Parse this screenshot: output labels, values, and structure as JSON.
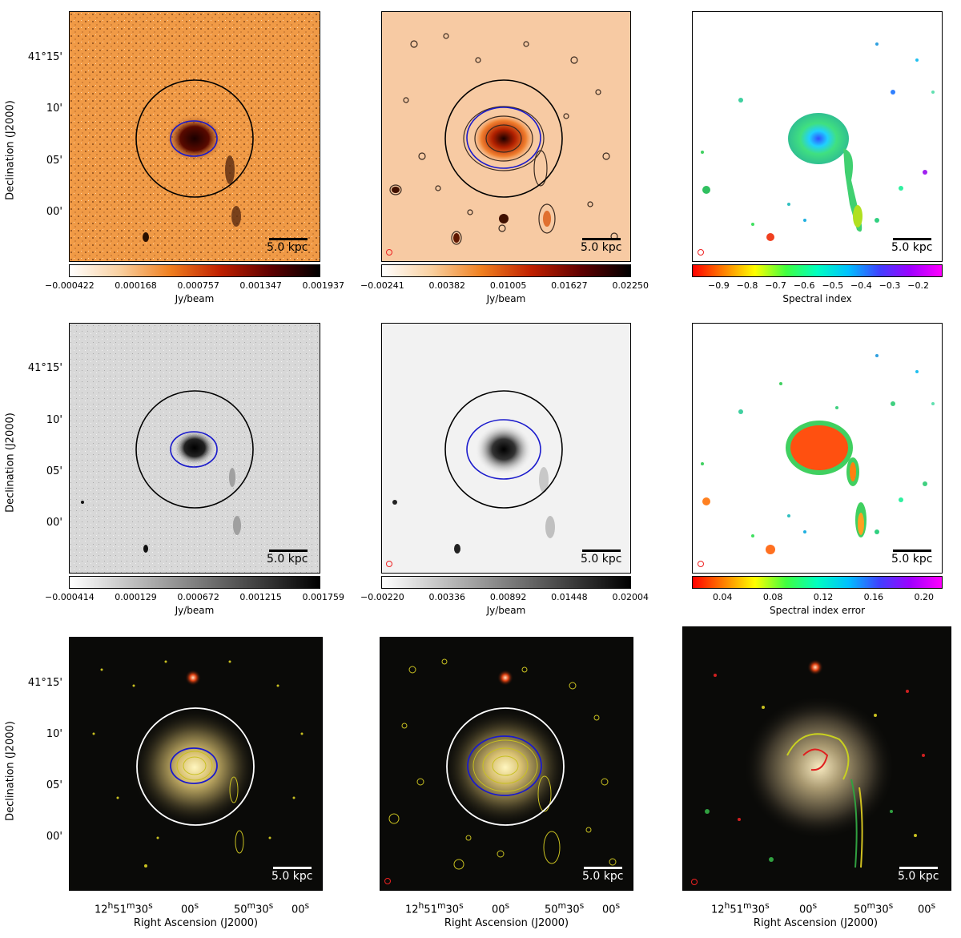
{
  "scale_bar_label": "5.0 kpc",
  "ylabel": "Declination (J2000)",
  "xlabel": "Right Ascension (J2000)",
  "dec_ticks": [
    "41°15'",
    "10'",
    "05'",
    "00'"
  ],
  "ra_ticks": [
    {
      "h": "12",
      "m": "51",
      "s": "30"
    },
    {
      "s": "00"
    },
    {
      "m": "50",
      "s": "30"
    },
    {
      "s": "00"
    }
  ],
  "colorbars": {
    "row1_col1": {
      "ticks": [
        "−0.000422",
        "0.000168",
        "0.000757",
        "0.001347",
        "0.001937"
      ],
      "label": "Jy/beam",
      "colormap": "afmhot_r"
    },
    "row1_col2": {
      "ticks": [
        "−0.00241",
        "0.00382",
        "0.01005",
        "0.01627",
        "0.02250"
      ],
      "label": "Jy/beam",
      "colormap": "afmhot_r"
    },
    "row1_col3": {
      "ticks": [
        "−0.9",
        "−0.8",
        "−0.7",
        "−0.6",
        "−0.5",
        "−0.4",
        "−0.3",
        "−0.2"
      ],
      "label": "Spectral index",
      "colormap": "rainbow"
    },
    "row2_col1": {
      "ticks": [
        "−0.000414",
        "0.000129",
        "0.000672",
        "0.001215",
        "0.001759"
      ],
      "label": "Jy/beam",
      "colormap": "gray_r"
    },
    "row2_col2": {
      "ticks": [
        "−0.00220",
        "0.00336",
        "0.00892",
        "0.01448",
        "0.02004"
      ],
      "label": "Jy/beam",
      "colormap": "gray_r"
    },
    "row2_col3": {
      "ticks": [
        "0.04",
        "0.08",
        "0.12",
        "0.16",
        "0.20"
      ],
      "label": "Spectral index error",
      "colormap": "rainbow"
    }
  },
  "colors": {
    "orange_bg": "#f5a35a",
    "light_orange_bg": "#f7c8a0",
    "circle_black": "#000000",
    "ellipse_blue": "#1a1acc",
    "contour_yellow": "#d8d040",
    "optical_bg": "#0a0a08"
  }
}
